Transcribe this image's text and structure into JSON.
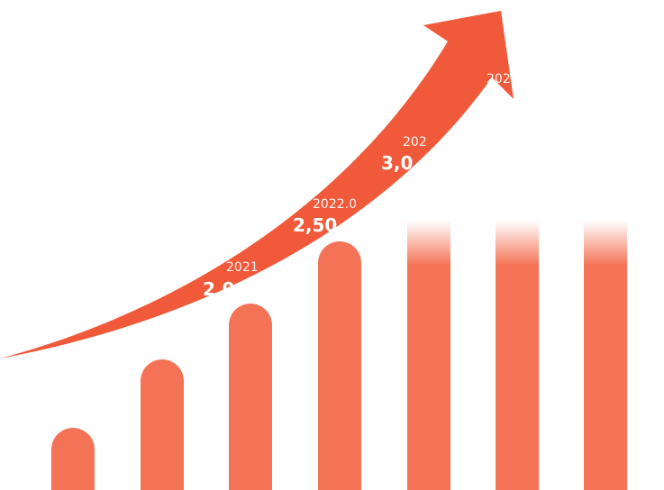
{
  "labels": [
    {
      "date": "2021",
      "amount": "2,0"
    },
    {
      "date": "2022.0",
      "amount": "2,50"
    },
    {
      "date": "202",
      "amount": "3,0"
    },
    {
      "date": "202"
    }
  ]
}
